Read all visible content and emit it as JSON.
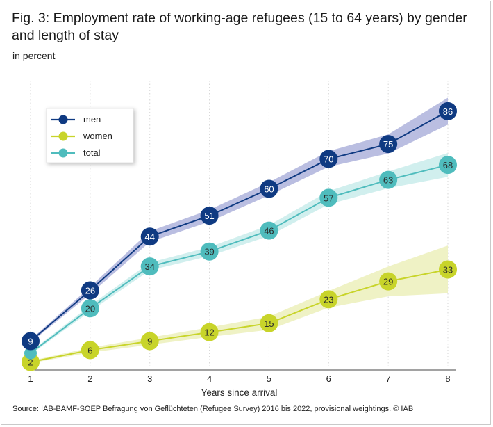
{
  "title": "Fig. 3: Employment rate of working-age refugees (15 to 64 years) by gender and length of stay",
  "subtitle": "in percent",
  "source": "Source: IAB-BAMF-SOEP Befragung von Geflüchteten (Refugee Survey) 2016 bis 2022, provisional weightings.  © IAB",
  "colors": {
    "men": "#0f3a82",
    "women": "#c8d42a",
    "total": "#4fbcbd",
    "men_band": "#b6bbdf",
    "women_band": "#eef1c2",
    "total_band": "#cfeeed"
  },
  "chart_data": {
    "type": "line",
    "title": "Fig. 3: Employment rate of working-age refugees (15 to 64 years) by gender and length of stay",
    "subtitle": "in percent",
    "xlabel": "Years since arrival",
    "ylabel": "",
    "x": [
      1,
      2,
      3,
      4,
      5,
      6,
      7,
      8
    ],
    "ylim": [
      0,
      100
    ],
    "grid": "vertical dotted",
    "legend": "top-left",
    "series": [
      {
        "name": "men",
        "values": [
          9,
          26,
          44,
          51,
          60,
          70,
          75,
          86
        ]
      },
      {
        "name": "women",
        "values": [
          2,
          6,
          9,
          12,
          15,
          23,
          29,
          33
        ]
      },
      {
        "name": "total",
        "values": [
          5,
          20,
          34,
          39,
          46,
          57,
          63,
          68
        ]
      }
    ],
    "hidden_labels": {
      "total": [
        0
      ]
    }
  }
}
